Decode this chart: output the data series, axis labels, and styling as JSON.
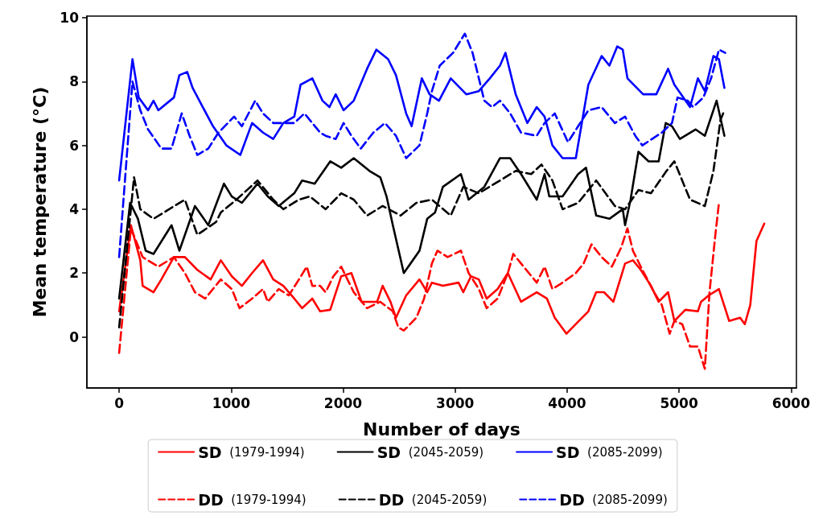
{
  "chart_data": {
    "type": "line",
    "xlabel": "Number of days",
    "ylabel": "Mean temperature (°C)",
    "xlim": [
      -288,
      6048
    ],
    "xticks": [
      0,
      1000,
      2000,
      3000,
      4000,
      5000,
      6000
    ],
    "ylim": [
      -1.6,
      10.05
    ],
    "yticks": [
      0,
      2,
      4,
      6,
      8,
      10
    ],
    "grid": false,
    "legend": "bottom",
    "marker": "none",
    "series": [
      {
        "name": "SD (1979-1994)",
        "color": "#ff0000",
        "line_style": "solid",
        "x": [
          0,
          105,
          189,
          210,
          307,
          377,
          489,
          587,
          698,
          817,
          908,
          1006,
          1096,
          1187,
          1285,
          1376,
          1466,
          1564,
          1634,
          1725,
          1795,
          1885,
          1983,
          2074,
          2165,
          2304,
          2353,
          2423,
          2472,
          2563,
          2682,
          2751,
          2793,
          2891,
          3031,
          3073,
          3142,
          3212,
          3282,
          3380,
          3471,
          3589,
          3729,
          3820,
          3890,
          3994,
          4050,
          4078,
          4190,
          4260,
          4330,
          4413,
          4518,
          4588,
          4658,
          4749,
          4818,
          4902,
          4958,
          5056,
          5168,
          5196,
          5265,
          5356,
          5447,
          5545,
          5587,
          5636,
          5691,
          5761
        ],
        "values": [
          0.8,
          3.5,
          2.4,
          1.6,
          1.4,
          1.8,
          2.5,
          2.5,
          2.1,
          1.8,
          2.4,
          1.9,
          1.6,
          2.0,
          2.4,
          1.8,
          1.6,
          1.2,
          0.9,
          1.2,
          0.8,
          0.85,
          1.9,
          2.0,
          1.1,
          1.1,
          1.6,
          1.1,
          0.6,
          1.3,
          1.8,
          1.4,
          1.7,
          1.6,
          1.7,
          1.4,
          1.9,
          1.8,
          1.2,
          1.5,
          2.0,
          1.1,
          1.4,
          1.2,
          0.6,
          0.1,
          0.3,
          0.4,
          0.8,
          1.4,
          1.4,
          1.1,
          2.3,
          2.4,
          2.1,
          1.6,
          1.1,
          1.4,
          0.5,
          0.85,
          0.8,
          1.1,
          1.3,
          1.5,
          0.5,
          0.6,
          0.4,
          1.0,
          3.0,
          3.55
        ]
      },
      {
        "name": "DD (1979-1994)",
        "color": "#ff0000",
        "line_style": "dashed",
        "x": [
          0,
          105,
          210,
          350,
          489,
          587,
          677,
          768,
          908,
          1006,
          1075,
          1187,
          1285,
          1327,
          1425,
          1515,
          1606,
          1676,
          1725,
          1795,
          1844,
          1913,
          1983,
          2095,
          2214,
          2332,
          2444,
          2493,
          2542,
          2654,
          2723,
          2793,
          2842,
          2933,
          3052,
          3121,
          3212,
          3282,
          3380,
          3471,
          3520,
          3589,
          3659,
          3729,
          3799,
          3869,
          3960,
          4078,
          4148,
          4218,
          4309,
          4400,
          4483,
          4539,
          4588,
          4658,
          4777,
          4846,
          4916,
          4958,
          5028,
          5098,
          5168,
          5230,
          5272,
          5321,
          5356
        ],
        "values": [
          -0.5,
          3.4,
          2.5,
          2.2,
          2.5,
          2.0,
          1.4,
          1.2,
          1.8,
          1.5,
          0.9,
          1.2,
          1.5,
          1.1,
          1.5,
          1.3,
          1.8,
          2.2,
          1.6,
          1.6,
          1.4,
          1.9,
          2.2,
          1.4,
          0.9,
          1.1,
          0.8,
          0.3,
          0.2,
          0.6,
          1.2,
          2.3,
          2.7,
          2.5,
          2.7,
          2.0,
          1.5,
          0.9,
          1.2,
          2.0,
          2.6,
          2.3,
          2.0,
          1.7,
          2.2,
          1.5,
          1.7,
          2.0,
          2.3,
          2.9,
          2.5,
          2.2,
          2.8,
          3.4,
          2.7,
          2.2,
          1.4,
          1.0,
          0.1,
          0.5,
          0.4,
          -0.3,
          -0.3,
          -1.0,
          1.4,
          3.1,
          4.2
        ]
      },
      {
        "name": "SD (2045-2059)",
        "color": "#000000",
        "line_style": "solid",
        "x": [
          0,
          98,
          168,
          237,
          307,
          468,
          538,
          677,
          796,
          936,
          1006,
          1096,
          1236,
          1327,
          1425,
          1564,
          1634,
          1746,
          1885,
          1983,
          2095,
          2235,
          2332,
          2388,
          2444,
          2542,
          2682,
          2751,
          2821,
          2891,
          3052,
          3121,
          3261,
          3401,
          3492,
          3589,
          3729,
          3799,
          3841,
          3960,
          4099,
          4169,
          4260,
          4378,
          4497,
          4518,
          4567,
          4637,
          4728,
          4818,
          4881,
          4937,
          5007,
          5147,
          5230,
          5335,
          5405
        ],
        "values": [
          1.2,
          4.2,
          3.7,
          2.7,
          2.6,
          3.5,
          2.7,
          4.1,
          3.5,
          4.8,
          4.4,
          4.2,
          4.8,
          4.4,
          4.1,
          4.5,
          4.9,
          4.8,
          5.5,
          5.3,
          5.6,
          5.2,
          5.0,
          4.4,
          3.5,
          2.0,
          2.7,
          3.7,
          3.9,
          4.7,
          5.1,
          4.3,
          4.7,
          5.6,
          5.6,
          5.1,
          4.3,
          5.1,
          4.4,
          4.4,
          5.1,
          5.3,
          3.8,
          3.7,
          4.0,
          3.5,
          4.3,
          5.8,
          5.5,
          5.5,
          6.7,
          6.6,
          6.2,
          6.5,
          6.3,
          7.4,
          6.3
        ]
      },
      {
        "name": "DD (2045-2059)",
        "color": "#000000",
        "line_style": "dashed",
        "x": [
          0,
          133,
          189,
          307,
          447,
          587,
          698,
          866,
          908,
          1047,
          1236,
          1376,
          1466,
          1606,
          1704,
          1844,
          1983,
          2095,
          2214,
          2353,
          2514,
          2654,
          2793,
          2961,
          3073,
          3212,
          3401,
          3541,
          3680,
          3771,
          3869,
          3960,
          4099,
          4260,
          4427,
          4518,
          4637,
          4749,
          4888,
          4958,
          5098,
          5230,
          5307,
          5370,
          5405
        ],
        "values": [
          0.3,
          5.0,
          4.0,
          3.7,
          4.0,
          4.3,
          3.2,
          3.6,
          3.9,
          4.3,
          4.9,
          4.3,
          4.0,
          4.3,
          4.4,
          4.0,
          4.5,
          4.3,
          3.8,
          4.1,
          3.8,
          4.2,
          4.3,
          3.8,
          4.7,
          4.5,
          4.9,
          5.2,
          5.1,
          5.4,
          4.9,
          4.0,
          4.2,
          4.9,
          4.1,
          4.0,
          4.6,
          4.5,
          5.2,
          5.5,
          4.3,
          4.1,
          5.2,
          6.8,
          7.1
        ]
      },
      {
        "name": "SD (2085-2099)",
        "color": "#0000ff",
        "line_style": "solid",
        "x": [
          0,
          119,
          175,
          258,
          307,
          350,
          489,
          538,
          608,
          656,
          747,
          838,
          957,
          1082,
          1187,
          1285,
          1376,
          1466,
          1564,
          1620,
          1725,
          1816,
          1878,
          1934,
          2004,
          2095,
          2214,
          2297,
          2402,
          2472,
          2563,
          2612,
          2703,
          2772,
          2856,
          2961,
          3100,
          3212,
          3310,
          3401,
          3450,
          3541,
          3645,
          3729,
          3799,
          3869,
          3960,
          4078,
          4190,
          4309,
          4378,
          4448,
          4497,
          4539,
          4679,
          4797,
          4902,
          4958,
          5098,
          5168,
          5230,
          5307,
          5356,
          5405
        ],
        "values": [
          4.9,
          8.7,
          7.5,
          7.1,
          7.4,
          7.1,
          7.5,
          8.2,
          8.3,
          7.8,
          7.2,
          6.6,
          6.0,
          5.7,
          6.7,
          6.4,
          6.2,
          6.7,
          6.9,
          7.9,
          8.1,
          7.4,
          7.2,
          7.6,
          7.1,
          7.4,
          8.4,
          9.0,
          8.7,
          8.2,
          7.0,
          6.6,
          8.1,
          7.6,
          7.4,
          8.1,
          7.6,
          7.7,
          8.1,
          8.5,
          8.9,
          7.6,
          6.7,
          7.2,
          6.9,
          6.0,
          5.6,
          5.6,
          7.9,
          8.8,
          8.5,
          9.1,
          9.0,
          8.1,
          7.6,
          7.6,
          8.4,
          7.9,
          7.2,
          8.1,
          7.7,
          8.8,
          8.7,
          7.8
        ]
      },
      {
        "name": "DD (2085-2099)",
        "color": "#0000ff",
        "line_style": "dashed",
        "x": [
          0,
          119,
          189,
          258,
          377,
          468,
          559,
          629,
          698,
          796,
          887,
          971,
          1027,
          1096,
          1215,
          1285,
          1376,
          1564,
          1655,
          1795,
          1844,
          1934,
          2004,
          2074,
          2158,
          2270,
          2374,
          2472,
          2563,
          2682,
          2751,
          2793,
          2863,
          2982,
          3087,
          3156,
          3261,
          3331,
          3401,
          3492,
          3589,
          3729,
          3799,
          3890,
          4008,
          4099,
          4190,
          4309,
          4427,
          4518,
          4609,
          4672,
          4846,
          4937,
          4986,
          5077,
          5126,
          5217,
          5286,
          5356,
          5412
        ],
        "values": [
          2.5,
          8.0,
          7.1,
          6.5,
          5.9,
          5.9,
          7.0,
          6.3,
          5.7,
          5.9,
          6.4,
          6.7,
          6.9,
          6.6,
          7.4,
          7.0,
          6.7,
          6.7,
          7.0,
          6.4,
          6.3,
          6.2,
          6.7,
          6.3,
          5.9,
          6.4,
          6.7,
          6.3,
          5.6,
          6.0,
          7.0,
          7.7,
          8.5,
          8.9,
          9.5,
          8.9,
          7.4,
          7.2,
          7.4,
          7.0,
          6.4,
          6.3,
          6.7,
          7.0,
          6.1,
          6.6,
          7.1,
          7.2,
          6.7,
          6.9,
          6.3,
          6.0,
          6.4,
          6.7,
          7.5,
          7.4,
          7.2,
          7.5,
          8.1,
          9.0,
          8.9
        ]
      }
    ]
  }
}
